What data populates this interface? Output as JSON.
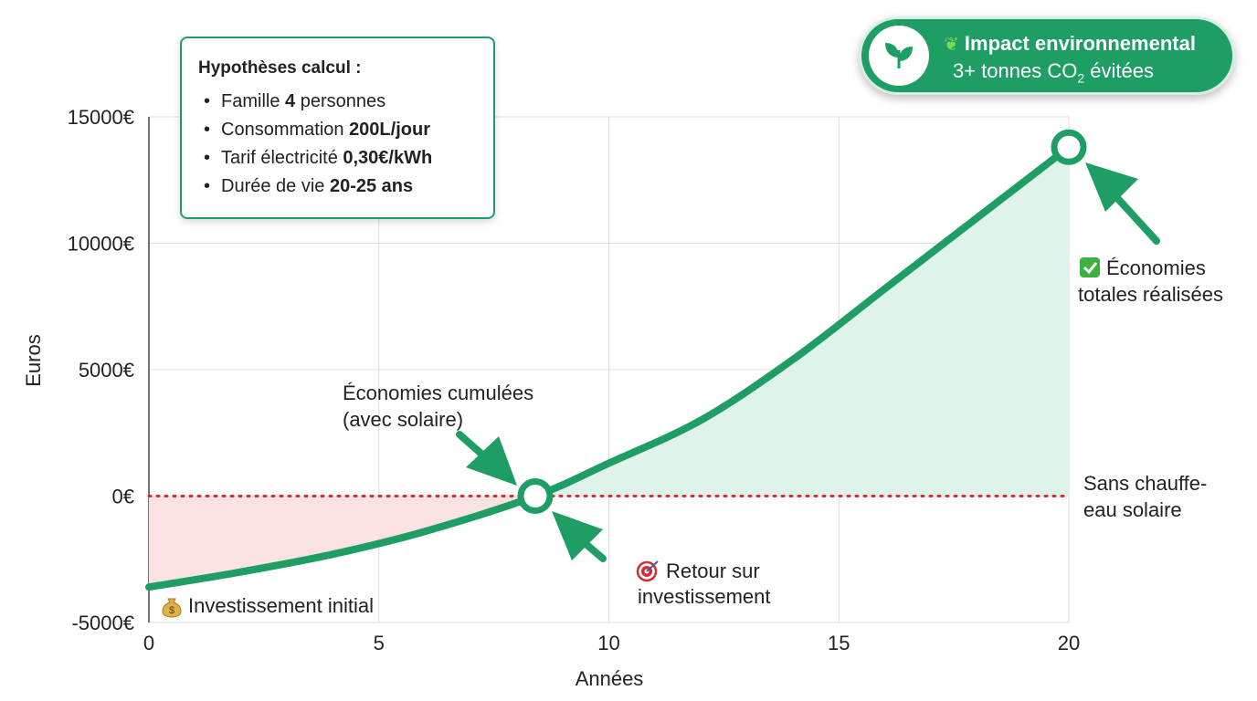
{
  "chart_data": {
    "type": "area",
    "title": "",
    "xlabel": "Années",
    "ylabel": "Euros",
    "xlim": [
      0,
      20
    ],
    "ylim": [
      -5000,
      15000
    ],
    "x_ticks": [
      "0",
      "5",
      "10",
      "15",
      "20"
    ],
    "y_ticks": [
      "-5000€",
      "0€",
      "5000€",
      "10000€",
      "15000€"
    ],
    "grid": true,
    "series": [
      {
        "name": "Économies cumulées (avec solaire)",
        "color": "#1e9e64",
        "x": [
          0,
          2,
          4,
          6,
          8.4,
          10,
          12,
          14,
          16,
          18,
          20
        ],
        "y": [
          -3600,
          -3000,
          -2300,
          -1400,
          0,
          1300,
          3000,
          5400,
          8200,
          11000,
          13800
        ]
      },
      {
        "name": "Sans chauffe-eau solaire",
        "color": "#d32f2f",
        "style": "dotted",
        "x": [
          0,
          20
        ],
        "y": [
          0,
          0
        ]
      }
    ],
    "markers": [
      {
        "name": "break-even",
        "x": 8.4,
        "y": 0
      },
      {
        "name": "total",
        "x": 20,
        "y": 13800
      }
    ],
    "annotations": {
      "cumulative_line1": "Économies cumulées",
      "cumulative_line2": "(avec solaire)",
      "roi_line1": "Retour sur",
      "roi_line2": "investissement",
      "total_line1": "Économies",
      "total_line2": "totales réalisées",
      "without_line1": "Sans chauffe-",
      "without_line2": "eau solaire",
      "investment": "Investissement initial"
    },
    "icons": {
      "investment": "money-bag-icon",
      "roi": "target-icon",
      "total": "check-mark-icon"
    },
    "colors": {
      "positive_fill": "#dff3ea",
      "negative_fill": "#fbe3e3",
      "accent": "#1e9e64"
    }
  },
  "hypotheses": {
    "title": "Hypothèses calcul :",
    "items": [
      {
        "text": "Famille ",
        "bold": "4",
        "suffix": " personnes"
      },
      {
        "text": "Consommation ",
        "bold": "200L/jour",
        "suffix": ""
      },
      {
        "text": "Tarif électricité ",
        "bold": "0,30€/kWh",
        "suffix": ""
      },
      {
        "text": "Durée de vie ",
        "bold": "20-25 ans",
        "suffix": ""
      }
    ]
  },
  "impact": {
    "title": "Impact environnemental",
    "sub_prefix": "3+ tonnes CO",
    "sub_subscript": "2",
    "sub_suffix": " évitées",
    "icon": "leaf-icon"
  }
}
